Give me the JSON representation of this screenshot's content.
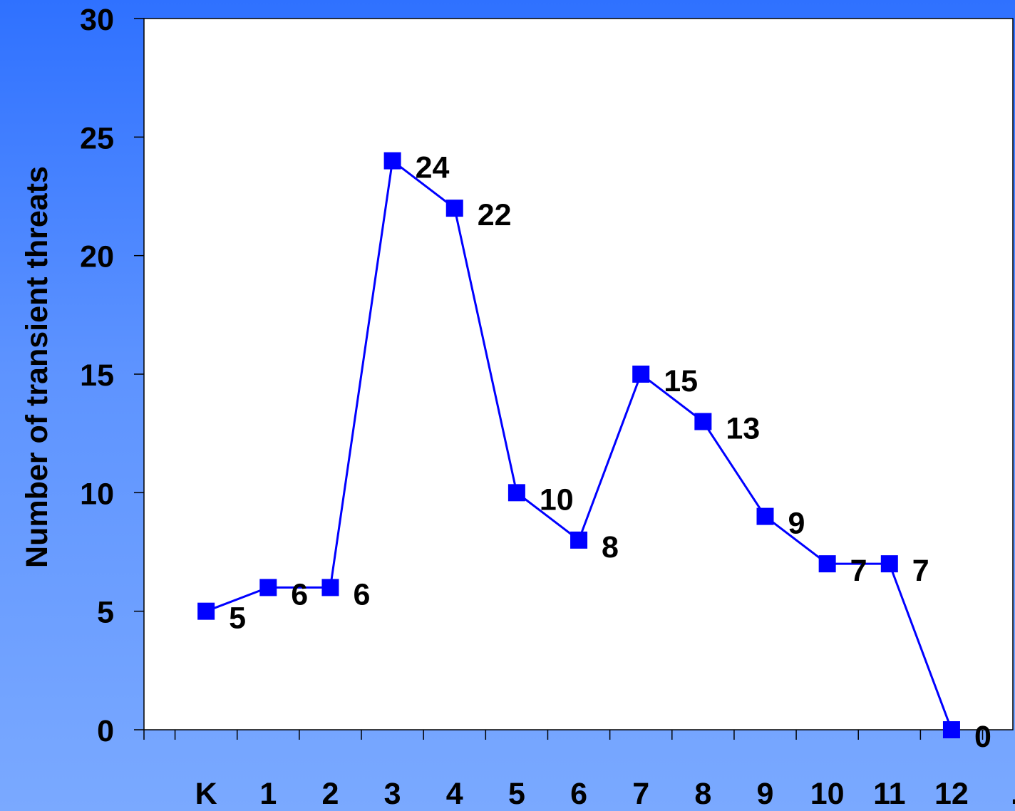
{
  "chart_data": {
    "type": "line",
    "title": "",
    "xlabel": "",
    "ylabel": "Number of transient threats",
    "ylim": [
      0,
      30
    ],
    "yticks": [
      "0",
      "5",
      "10",
      "15",
      "20",
      "25",
      "30"
    ],
    "categories": [
      "K",
      "1",
      "2",
      "3",
      "4",
      "5",
      "6",
      "7",
      "8",
      "9",
      "10",
      "11",
      "12"
    ],
    "trailing_tick_text": ".",
    "series": [
      {
        "values": [
          5,
          6,
          6,
          24,
          22,
          10,
          8,
          15,
          13,
          9,
          7,
          7,
          0
        ]
      }
    ],
    "data_labels": [
      "5",
      "6",
      "6",
      "24",
      "22",
      "10",
      "8",
      "15",
      "13",
      "9",
      "7",
      "7",
      "0"
    ],
    "grid": false,
    "colors": {
      "line": "#0000ff",
      "marker": "#0000ff",
      "plot_background": "#ffffff",
      "axis": "#000000"
    }
  }
}
